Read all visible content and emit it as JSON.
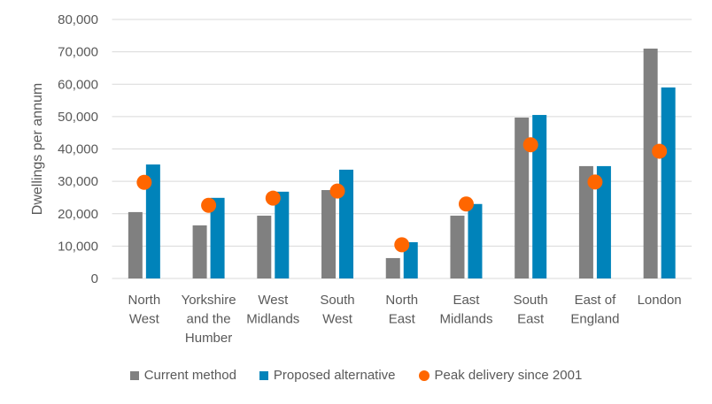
{
  "chart_data": {
    "type": "bar",
    "title": "",
    "xlabel": "",
    "ylabel": "Dwellings per annum",
    "ylim": [
      0,
      80000
    ],
    "yticks": [
      0,
      10000,
      20000,
      30000,
      40000,
      50000,
      60000,
      70000,
      80000
    ],
    "ytick_labels": [
      "0",
      "10,000",
      "20,000",
      "30,000",
      "40,000",
      "50,000",
      "60,000",
      "70,000",
      "80,000"
    ],
    "grid": true,
    "legend_position": "bottom",
    "categories": [
      [
        "North",
        "West"
      ],
      [
        "Yorkshire",
        "and the",
        "Humber"
      ],
      [
        "West",
        "Midlands"
      ],
      [
        "South",
        "West"
      ],
      [
        "North",
        "East"
      ],
      [
        "East",
        "Midlands"
      ],
      [
        "South",
        "East"
      ],
      [
        "East of",
        "England"
      ],
      [
        "London"
      ]
    ],
    "series": [
      {
        "name": "Current method",
        "type": "bar",
        "color": "#808080",
        "values": [
          20500,
          16400,
          19400,
          27300,
          6300,
          19400,
          49700,
          34700,
          71000
        ]
      },
      {
        "name": "Proposed alternative",
        "type": "bar",
        "color": "#0083BA",
        "values": [
          35200,
          24900,
          26800,
          33600,
          11200,
          23000,
          50500,
          34700,
          59000
        ]
      },
      {
        "name": "Peak delivery since 2001",
        "type": "scatter",
        "color": "#FF6600",
        "values": [
          29700,
          22600,
          24800,
          27000,
          10400,
          23000,
          41300,
          29800,
          39300
        ]
      }
    ]
  }
}
